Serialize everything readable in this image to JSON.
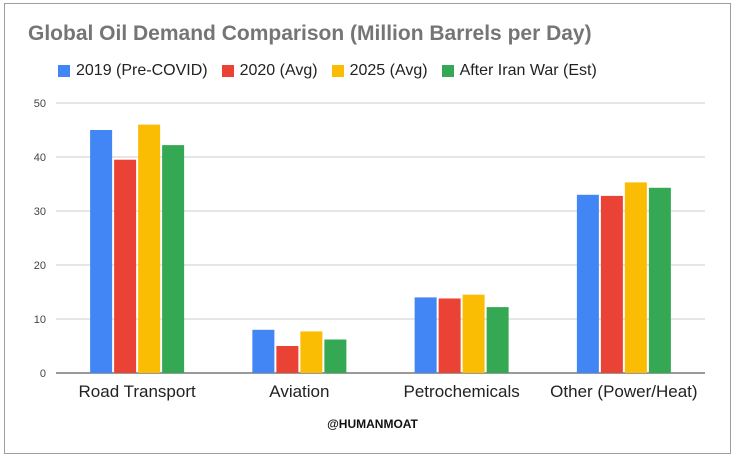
{
  "chart_data": {
    "type": "bar",
    "title": "Global Oil Demand Comparison (Million Barrels per Day)",
    "categories": [
      "Road Transport",
      "Aviation",
      "Petrochemicals",
      "Other (Power/Heat)"
    ],
    "series": [
      {
        "name": "2019 (Pre-COVID)",
        "color": "#4285f4",
        "values": [
          45,
          8,
          14,
          33
        ]
      },
      {
        "name": "2020 (Avg)",
        "color": "#ea4335",
        "values": [
          39.5,
          5,
          13.8,
          32.8
        ]
      },
      {
        "name": "2025 (Avg)",
        "color": "#fbbc04",
        "values": [
          46,
          7.7,
          14.5,
          35.3
        ]
      },
      {
        "name": "After Iran War (Est)",
        "color": "#34a853",
        "values": [
          42.2,
          6.2,
          12.2,
          34.3
        ]
      }
    ],
    "yticks": [
      "0",
      "10",
      "20",
      "30",
      "40",
      "50"
    ],
    "ylim": [
      0,
      50
    ],
    "xlabel": "",
    "ylabel": "",
    "legend_position": "top",
    "grid": true
  },
  "watermark": "@HUMANMOAT"
}
